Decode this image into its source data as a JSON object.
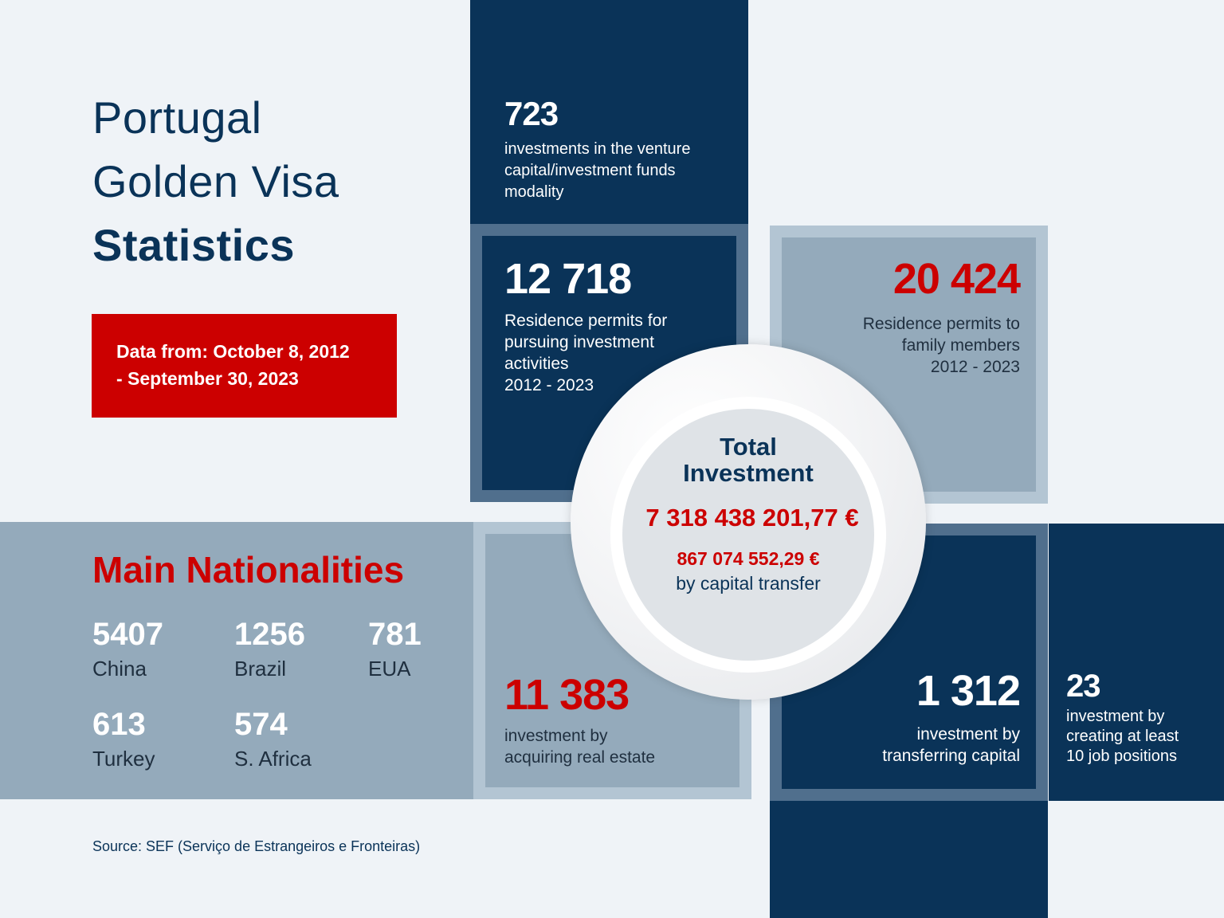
{
  "title": {
    "line1": "Portugal",
    "line2": "Golden Visa",
    "line3": "Statistics"
  },
  "date_badge": {
    "line1": "Data from: October 8, 2012",
    "line2": "- September 30, 2023"
  },
  "stats": {
    "venture": {
      "value": "723",
      "desc": [
        "investments in the venture",
        "capital/investment funds",
        "modality"
      ]
    },
    "residence_investment": {
      "value": "12 718",
      "desc": [
        "Residence permits for",
        "pursuing investment",
        "activities",
        "2012 - 2023"
      ]
    },
    "residence_family": {
      "value": "20 424",
      "desc": [
        "Residence permits to",
        "family members",
        "2012 - 2023"
      ]
    },
    "real_estate": {
      "value": "11 383",
      "desc": [
        "investment by",
        "acquiring real estate"
      ]
    },
    "capital_transfer": {
      "value": "1 312",
      "desc": [
        "investment by",
        "transferring capital"
      ]
    },
    "job_creation": {
      "value": "23",
      "desc": [
        "investment by",
        "creating at least",
        "10 job positions"
      ]
    }
  },
  "total": {
    "label_line1": "Total",
    "label_line2": "Investment",
    "amount": "7 318 438 201,77 €",
    "sub_amount": "867 074 552,29 €",
    "sub_label": "by capital transfer"
  },
  "nationalities": {
    "heading": "Main Nationalities",
    "items": [
      {
        "count": "5407",
        "country": "China"
      },
      {
        "count": "1256",
        "country": "Brazil"
      },
      {
        "count": "781",
        "country": "EUA"
      },
      {
        "count": "613",
        "country": "Turkey"
      },
      {
        "count": "574",
        "country": "S. Africa"
      }
    ]
  },
  "source": "Source: SEF (Serviço de Estrangeiros e Fronteiras)",
  "colors": {
    "navy": "#0a3358",
    "steel": "#94aabb",
    "red": "#cc0000",
    "background": "#eff3f7"
  }
}
